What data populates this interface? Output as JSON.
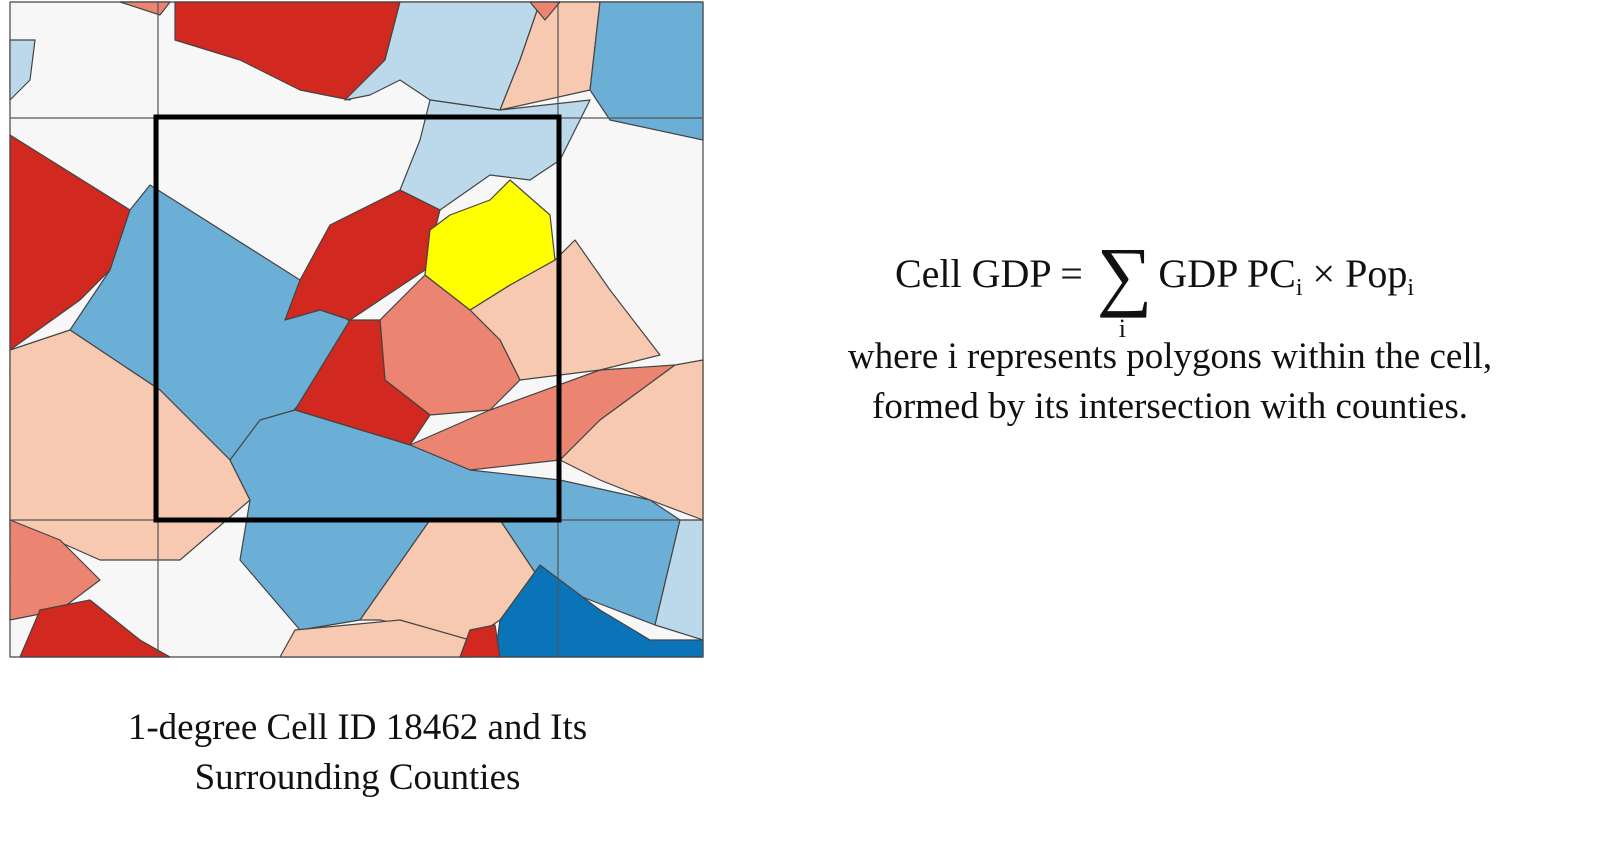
{
  "map": {
    "cell_label_line1": "1-degree Cell ID 18462 and Its",
    "cell_label_line2": "Surrounding Counties",
    "colors": {
      "dark_red": "#d1281f",
      "salmon": "#eb8470",
      "peach": "#f7c9b0",
      "white": "#f7f7f7",
      "light_blue": "#bcd9eb",
      "mid_blue": "#6baed6",
      "dark_blue": "#0b74b8",
      "highlight": "#ffff00"
    }
  },
  "formula": {
    "lhs": "Cell GDP =",
    "sum_symbol": "∑",
    "sum_index": "i",
    "term1": "GDP PC",
    "sub1": "i",
    "times": "×",
    "term2": "Pop",
    "sub2": "i",
    "desc_line1": "where i represents polygons within the cell,",
    "desc_line2": "formed by its intersection with counties."
  }
}
